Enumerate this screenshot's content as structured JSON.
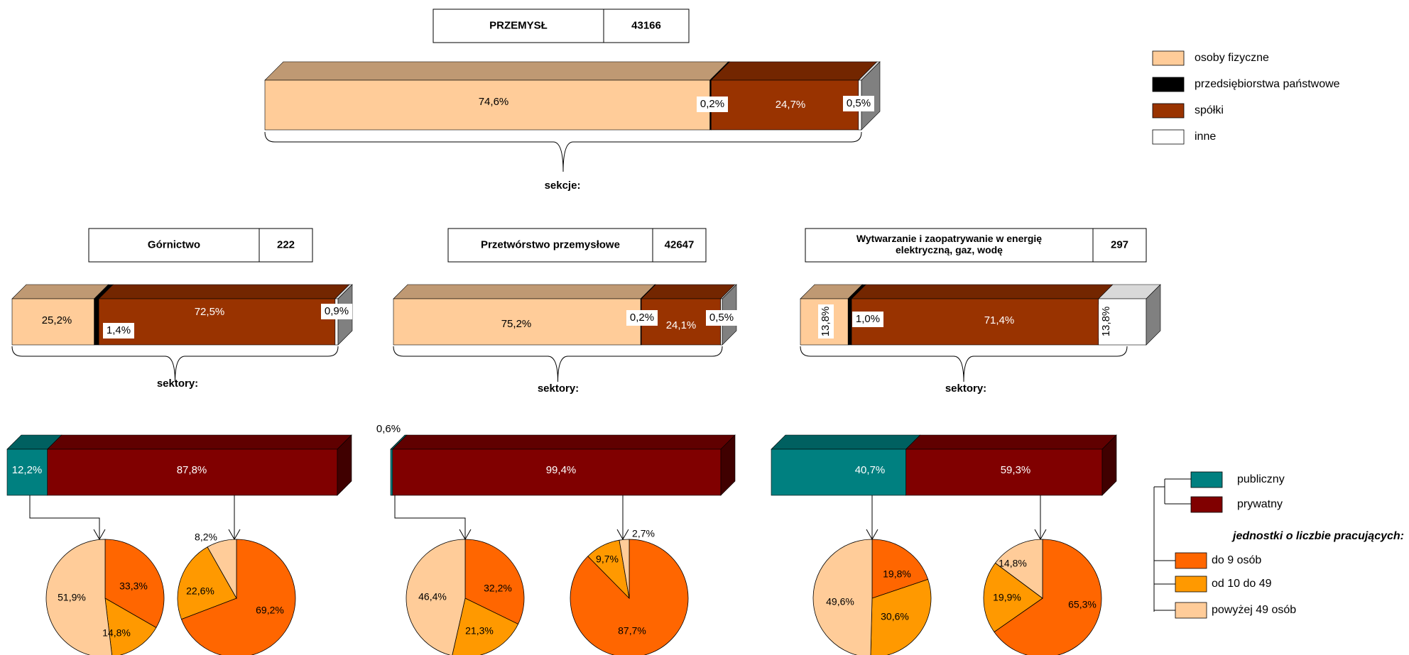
{
  "colors": {
    "osoby": "#FFCC99",
    "panstwowe": "#000000",
    "spolki": "#993300",
    "inne": "#FFFFFF",
    "publiczny": "#008080",
    "prywatny": "#800000",
    "do9": "#FF6600",
    "od10": "#FF9900",
    "pow49": "#FFCC99"
  },
  "legend_ownership": [
    {
      "label": "osoby fizyczne",
      "color": "#FFCC99"
    },
    {
      "label": "przedsiębiorstwa państwowe",
      "color": "#000000"
    },
    {
      "label": "spółki",
      "color": "#993300"
    },
    {
      "label": "inne",
      "color": "#FFFFFF"
    }
  ],
  "legend_sector": [
    {
      "label": "publiczny",
      "color": "#008080"
    },
    {
      "label": "prywatny",
      "color": "#800000"
    }
  ],
  "legend_size_title": "jednostki o liczbie pracujących:",
  "legend_size": [
    {
      "label": "do 9 osób",
      "color": "#FF6600"
    },
    {
      "label": "od 10 do 49",
      "color": "#FF9900"
    },
    {
      "label": "powyżej 49 osób",
      "color": "#FFCC99"
    }
  ],
  "labels": {
    "sekcje": "sekcje:",
    "sektory": "sektory:"
  },
  "chart_data": [
    {
      "type": "bar",
      "id": "przemysl",
      "title": "PRZEMYSŁ",
      "total": "43166",
      "categories": [
        "osoby fizyczne",
        "przedsiębiorstwa państwowe",
        "spółki",
        "inne"
      ],
      "values": [
        74.6,
        0.2,
        24.7,
        0.5
      ],
      "value_labels": [
        "74,6%",
        "0,2%",
        "24,7%",
        "0,5%"
      ]
    },
    {
      "type": "bar",
      "id": "gornictwo",
      "title": "Górnictwo",
      "total": "222",
      "categories": [
        "osoby fizyczne",
        "przedsiębiorstwa państwowe",
        "spółki",
        "inne"
      ],
      "values": [
        25.2,
        1.4,
        72.5,
        0.9
      ],
      "value_labels": [
        "25,2%",
        "1,4%",
        "72,5%",
        "0,9%"
      ]
    },
    {
      "type": "bar",
      "id": "przetworstwo",
      "title": "Przetwórstwo przemysłowe",
      "total": "42647",
      "categories": [
        "osoby fizyczne",
        "przedsiębiorstwa państwowe",
        "spółki",
        "inne"
      ],
      "values": [
        75.2,
        0.2,
        24.1,
        0.5
      ],
      "value_labels": [
        "75,2%",
        "0,2%",
        "24,1%",
        "0,5%"
      ]
    },
    {
      "type": "bar",
      "id": "energia",
      "title": "Wytwarzanie i zaopatrywanie w energię elektryczną, gaz, wodę",
      "title_lines": [
        "Wytwarzanie i zaopatrywanie w energię",
        "elektryczną, gaz, wodę"
      ],
      "total": "297",
      "categories": [
        "osoby fizyczne",
        "przedsiębiorstwa państwowe",
        "spółki",
        "inne"
      ],
      "values": [
        13.8,
        1.0,
        71.4,
        13.8
      ],
      "value_labels": [
        "13,8%",
        "1,0%",
        "71,4%",
        "13,8%"
      ]
    },
    {
      "type": "bar",
      "id": "gornictwo-sektory",
      "categories": [
        "publiczny",
        "prywatny"
      ],
      "values": [
        12.2,
        87.8
      ],
      "value_labels": [
        "12,2%",
        "87,8%"
      ]
    },
    {
      "type": "bar",
      "id": "przetworstwo-sektory",
      "categories": [
        "publiczny",
        "prywatny"
      ],
      "values": [
        0.6,
        99.4
      ],
      "value_labels": [
        "0,6%",
        "99,4%"
      ]
    },
    {
      "type": "bar",
      "id": "energia-sektory",
      "categories": [
        "publiczny",
        "prywatny"
      ],
      "values": [
        40.7,
        59.3
      ],
      "value_labels": [
        "40,7%",
        "59,3%"
      ]
    },
    {
      "type": "pie",
      "id": "gornictwo-publiczny",
      "categories": [
        "do 9 osób",
        "od 10 do 49",
        "powyżej 49 osób"
      ],
      "values": [
        33.3,
        14.8,
        51.9
      ],
      "value_labels": [
        "33,3%",
        "14,8%",
        "51,9%"
      ]
    },
    {
      "type": "pie",
      "id": "gornictwo-prywatny",
      "categories": [
        "do 9 osób",
        "od 10 do 49",
        "powyżej 49 osób"
      ],
      "values": [
        69.2,
        22.6,
        8.2
      ],
      "value_labels": [
        "69,2%",
        "22,6%",
        "8,2%"
      ]
    },
    {
      "type": "pie",
      "id": "przetworstwo-publiczny",
      "categories": [
        "do 9 osób",
        "od 10 do 49",
        "powyżej 49 osób"
      ],
      "values": [
        32.2,
        21.3,
        46.4
      ],
      "value_labels": [
        "32,2%",
        "21,3%",
        "46,4%"
      ]
    },
    {
      "type": "pie",
      "id": "przetworstwo-prywatny",
      "categories": [
        "do 9 osób",
        "od 10 do 49",
        "powyżej 49 osób"
      ],
      "values": [
        87.7,
        9.7,
        2.7
      ],
      "value_labels": [
        "87,7%",
        "9,7%",
        "2,7%"
      ]
    },
    {
      "type": "pie",
      "id": "energia-publiczny",
      "categories": [
        "do 9 osób",
        "od 10 do 49",
        "powyżej 49 osób"
      ],
      "values": [
        19.8,
        30.6,
        49.6
      ],
      "value_labels": [
        "19,8%",
        "30,6%",
        "49,6%"
      ]
    },
    {
      "type": "pie",
      "id": "energia-prywatny",
      "categories": [
        "do 9 osób",
        "od 10 do 49",
        "powyżej 49 osób"
      ],
      "values": [
        65.3,
        19.9,
        14.8
      ],
      "value_labels": [
        "65,3%",
        "19,9%",
        "14,8%"
      ]
    }
  ]
}
